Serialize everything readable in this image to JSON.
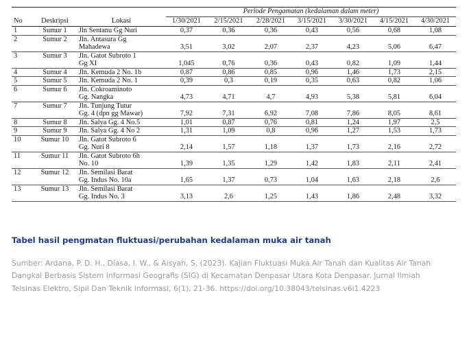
{
  "table": {
    "headers": {
      "no": "No",
      "deskripsi": "Deskripsi",
      "lokasi": "Lokasi",
      "periode": "Periode Pengamatan (kedalaman dalam meter)"
    },
    "dates": [
      "1/30/2021",
      "2/15/2021",
      "2/28/2021",
      "3/15/2021",
      "3/30/2021",
      "4/15/2021",
      "4/30/2021"
    ],
    "rows": [
      {
        "no": "1",
        "desc": "Sumur 1",
        "loc": [
          "Jln Sentanu Gg Nuri"
        ],
        "vals": [
          "0,37",
          "0,36",
          "0,36",
          "0,43",
          "0,56",
          "0,68",
          "1,08"
        ]
      },
      {
        "no": "2",
        "desc": "Sumur 2",
        "loc": [
          "Jln. Antasura Gg",
          "Mahadewa"
        ],
        "vals": [
          "3,51",
          "3,02",
          "2,07",
          "2,37",
          "4,23",
          "5,06",
          "6,47"
        ]
      },
      {
        "no": "3",
        "desc": "Sumur 3",
        "loc": [
          "Jln. Gatot Subroto 1",
          "Gg XI"
        ],
        "vals": [
          "1,045",
          "0,76",
          "0,36",
          "0,43",
          "0,82",
          "1,09",
          "1,44"
        ]
      },
      {
        "no": "4",
        "desc": "Sumur 4",
        "loc": [
          "Jln. Kemuda 2 No. 1b"
        ],
        "vals": [
          "0,87",
          "0,86",
          "0,85",
          "0,96",
          "1,46",
          "1,73",
          "2,15"
        ]
      },
      {
        "no": "5",
        "desc": "Sumur 5",
        "loc": [
          "Jln. Kemuda 2 No. 1"
        ],
        "vals": [
          "0,39",
          "0,3",
          "0,19",
          "0,35",
          "0,63",
          "0,82",
          "1,06"
        ]
      },
      {
        "no": "6",
        "desc": "Sumur 6",
        "loc": [
          "Jln. Cokroaminoto",
          "Gg. Nangka"
        ],
        "vals": [
          "4,73",
          "4,71",
          "4,7",
          "4,93",
          "5,38",
          "5,81",
          "6,04"
        ]
      },
      {
        "no": "7",
        "desc": "Sumur 7",
        "loc": [
          "Jln. Tunjung Tutur",
          "Gg. 4 (dpn gg Mawar)"
        ],
        "vals": [
          "7,92",
          "7,31",
          "6,92",
          "7,08",
          "7,86",
          "8,05",
          "8,61"
        ]
      },
      {
        "no": "8",
        "desc": "Sumur 8",
        "loc": [
          "Jln. Salya Gg. 4 No.5"
        ],
        "vals": [
          "1,01",
          "0,87",
          "0,76",
          "0,81",
          "1,24",
          "1,97",
          "2,5"
        ]
      },
      {
        "no": "9",
        "desc": "Sumur 9",
        "loc": [
          "Jln. Salya Gg. 4 No 2"
        ],
        "vals": [
          "1,31",
          "1,09",
          "0,8",
          "0,96",
          "1,27",
          "1,53",
          "1,73"
        ]
      },
      {
        "no": "10",
        "desc": "Sumur 10",
        "loc": [
          "Jln. Gatot Subroto 6",
          "Gg. Nuri 8"
        ],
        "vals": [
          "2,14",
          "1,57",
          "1,18",
          "1,37",
          "1,73",
          "2,16",
          "2,72"
        ]
      },
      {
        "no": "11",
        "desc": "Sumur 11",
        "loc": [
          "Jln. Gatot Subroto 6h",
          "No. 10"
        ],
        "vals": [
          "1,39",
          "1,35",
          "1,29",
          "1,42",
          "1,83",
          "2,11",
          "2,41"
        ]
      },
      {
        "no": "12",
        "desc": "Sumur 12",
        "loc": [
          "Jln. Semilasi Barat",
          "Gg. Indus No. 10a"
        ],
        "vals": [
          "1,65",
          "1,37",
          "0,73",
          "1,04",
          "1,63",
          "2,18",
          "2,6"
        ]
      },
      {
        "no": "13",
        "desc": "Sumur 13",
        "loc": [
          "Jln. Semilasi Barat",
          "Gg. Indus No. 3"
        ],
        "vals": [
          "3,13",
          "2,6",
          "1,25",
          "1,43",
          "1,86",
          "2,48",
          "3,32"
        ]
      }
    ]
  },
  "caption": "Tabel hasil pengmatan fluktuasi/perubahan kedalaman muka air tanah",
  "source": "Sumber: Ardana, P. D. H., Diasa, I. W., & Aisyah, S. (2023). Kajian Fluktuasi Muka Air Tanah dan Kualitas Air Tanah Dangkal Berbasis Sistem Informasi Geografis (SIG) di Kecamatan Denpasar Utara Kota Denpasar. Jurnal Ilmiah Telsinas Elektro, Sipil Dan Teknik Informasi, 6(1), 21-36. https://doi.org/10.38043/telsinas.v6i1.4223",
  "colors": {
    "caption": "#1a3c8c",
    "source": "#9a9a9a"
  }
}
